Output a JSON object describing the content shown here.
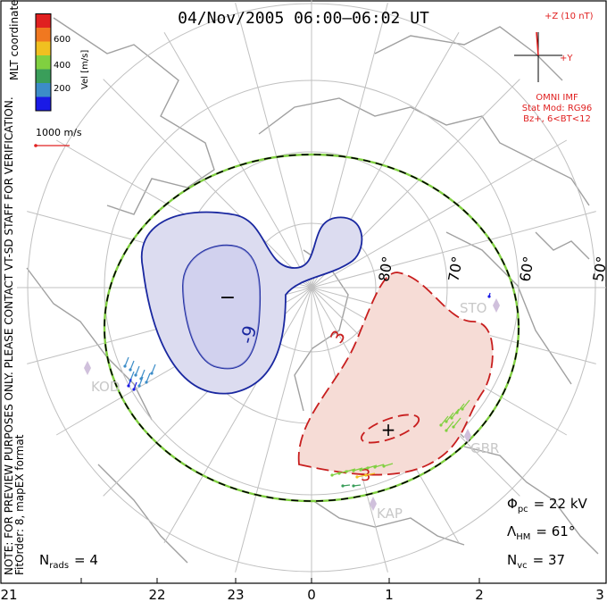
{
  "title": "04/Nov/2005 06:00–06:02 UT",
  "coordinates_label": "MLT coordinates",
  "colorbar": {
    "label": "Vel [m/s]",
    "ticks": [
      "600",
      "400",
      "200"
    ],
    "colors": [
      "#1a1ae6",
      "#3c8cc8",
      "#3a9e5a",
      "#80d040",
      "#f0c020",
      "#f07820",
      "#e02020"
    ]
  },
  "vector_scale": {
    "label": "1000 m/s",
    "color": "#e02020"
  },
  "imf_panel": {
    "bz_label": "+Z (10 nT)",
    "by_label": "+Y",
    "source": "OMNI IMF",
    "model": "Stat Mod: RG96",
    "condition": "Bz+, 6<BT<12",
    "color": "#e02020"
  },
  "watermark": "NOTE: FOR PREVIEW PURPOSES ONLY. PLEASE CONTACT VT-SD STAFF FOR VERIFICATION.",
  "fit_info": "FitOrder: 8, mapEX format",
  "latitude_labels": [
    "80°",
    "70°",
    "60°",
    "50°"
  ],
  "station_labels": [
    "KOD",
    "STO",
    "GBR",
    "KAP"
  ],
  "contours": {
    "negative_label": "-9",
    "positive_label": "3",
    "min_marker": "−",
    "max_marker": "+",
    "negative_color": "#1a28a0",
    "positive_color": "#c81e1e",
    "negative_fill": "#dcdcf0",
    "positive_fill": "#f6dcd6"
  },
  "stats": {
    "phi_pc_symbol": "Φ",
    "phi_pc_sub": "pc",
    "phi_pc_value": "= 22 kV",
    "lambda_hm_symbol": "Λ",
    "lambda_hm_sub": "HM",
    "lambda_hm_value": "= 61°",
    "n_vc_symbol": "N",
    "n_vc_sub": "vc",
    "n_vc_value": "= 37",
    "n_rads_symbol": "N",
    "n_rads_sub": "rads",
    "n_rads_value": "= 4"
  },
  "mlt_axis_labels": [
    "21",
    "22",
    "23",
    "0",
    "1",
    "2",
    "3"
  ]
}
